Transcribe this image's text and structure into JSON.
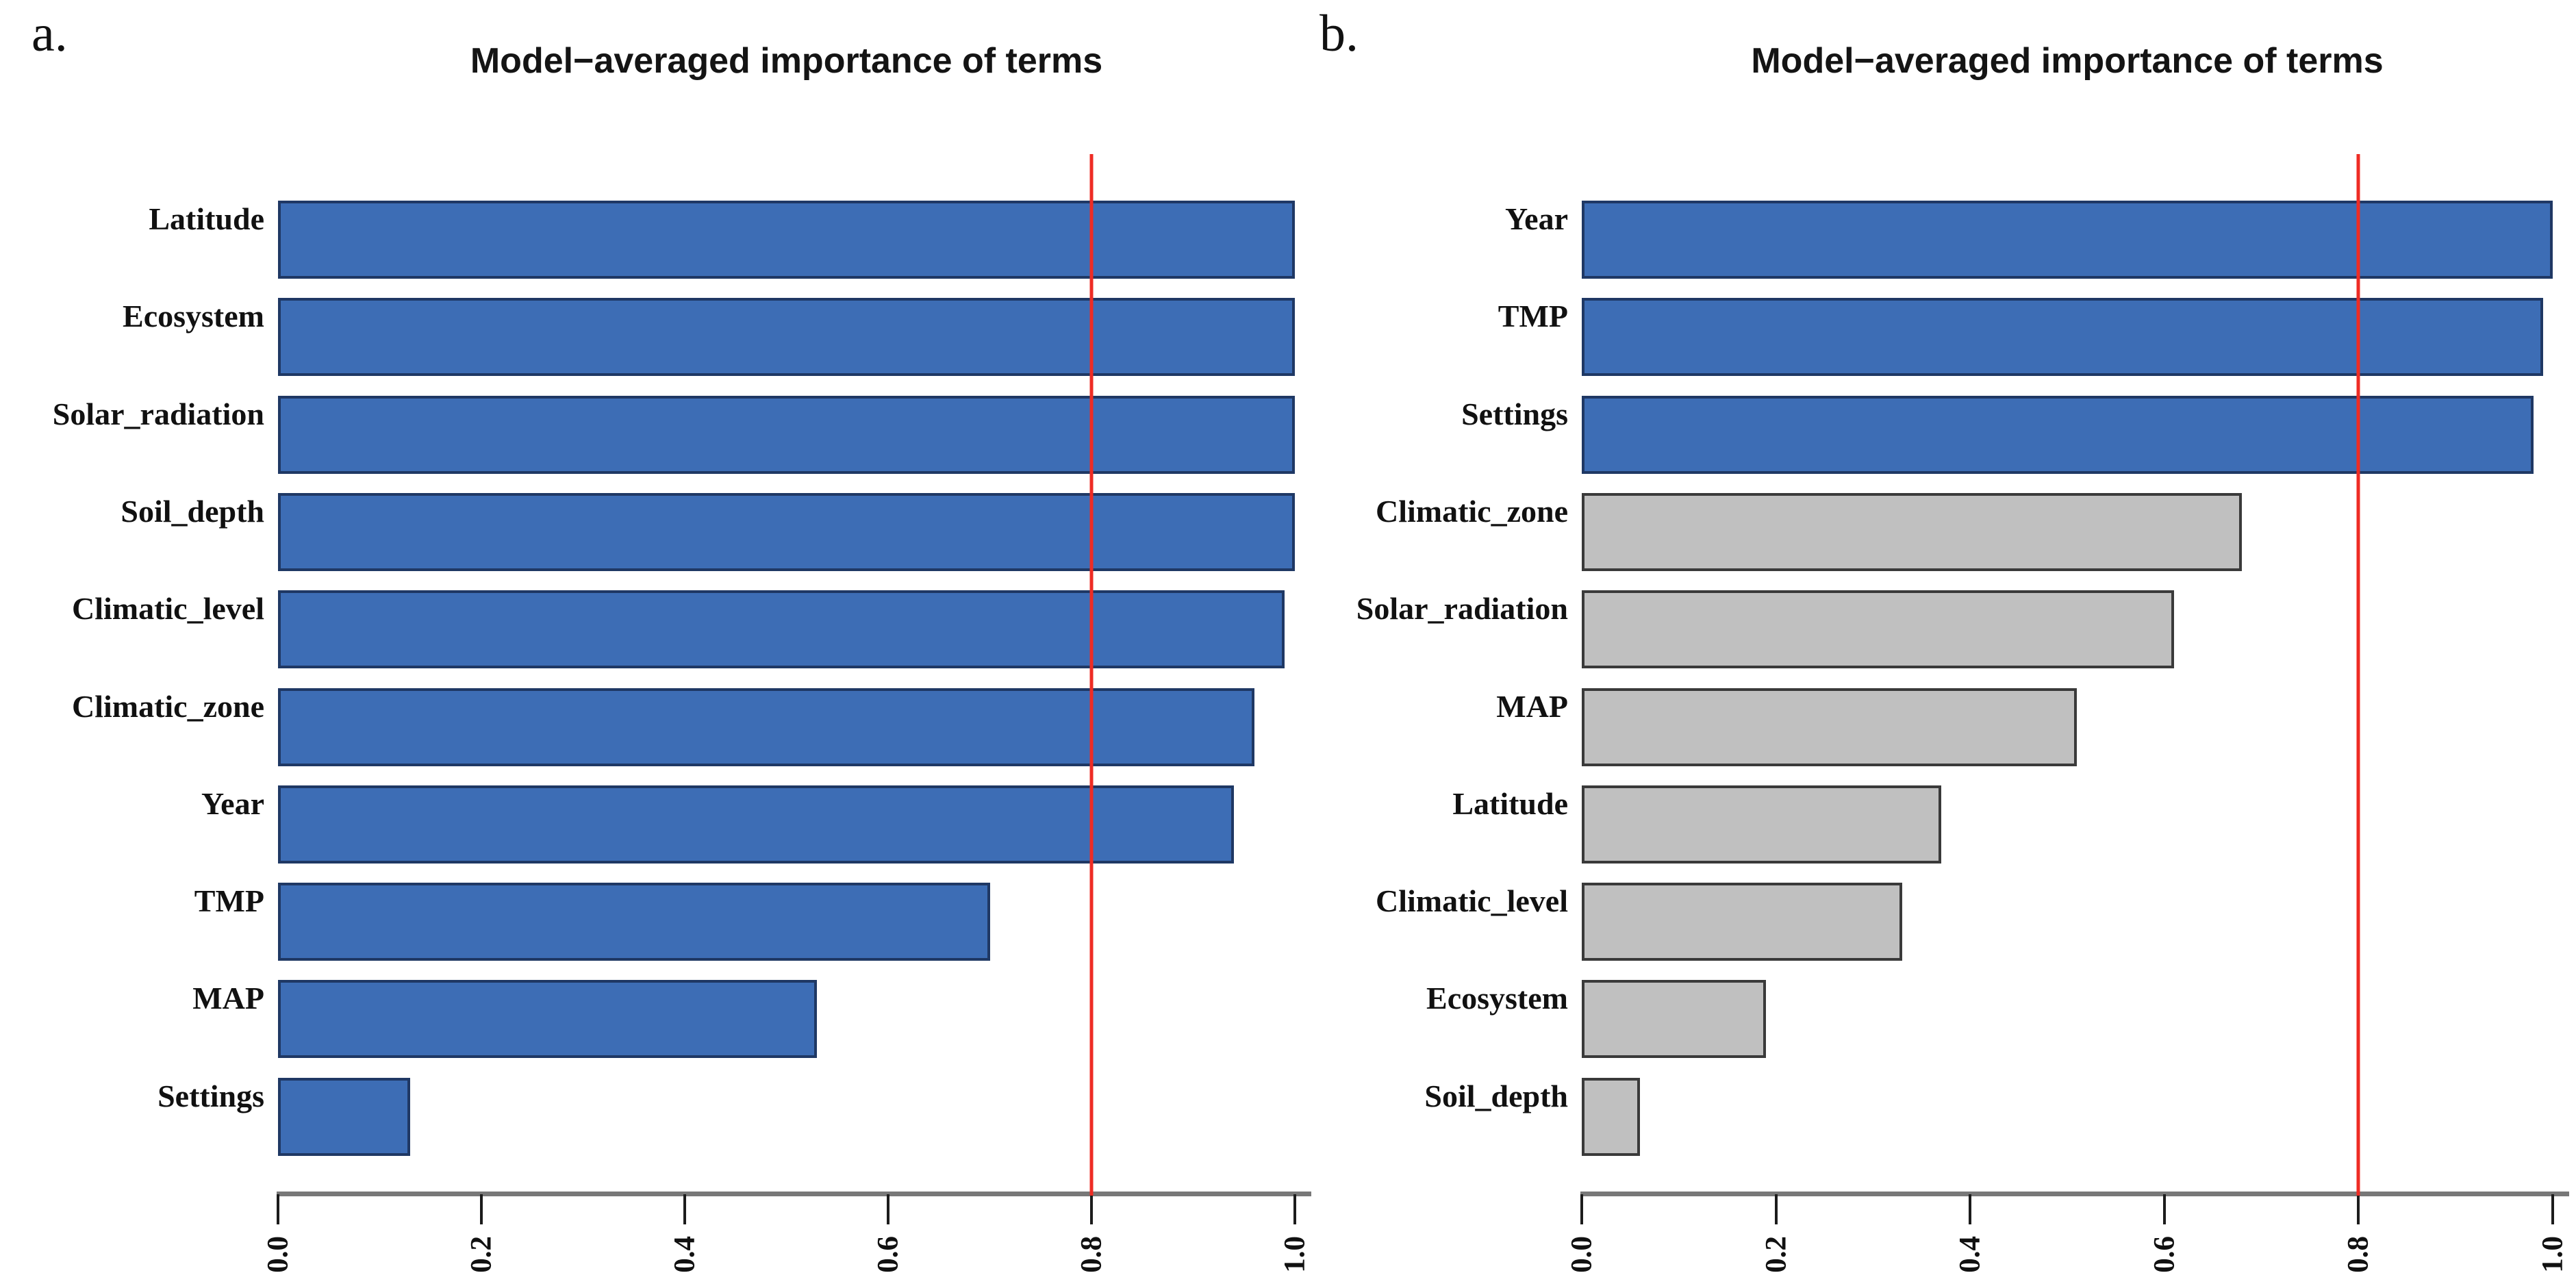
{
  "colors": {
    "blue": "#3D6DB5",
    "blue_border": "#1F3864",
    "gray": "#C0C0C0",
    "gray_border": "#3A3A3A",
    "red": "#EE2C24"
  },
  "chart_data": [
    {
      "type": "bar",
      "orientation": "horizontal",
      "panel_letter": "a.",
      "title": "Model−averaged importance of terms",
      "xlabel": "",
      "ylabel": "",
      "xlim": [
        0,
        1
      ],
      "x_ticks": [
        "0.0",
        "0.2",
        "0.4",
        "0.6",
        "0.8",
        "1.0"
      ],
      "threshold_line_x": 0.8,
      "grid": false,
      "legend": "none",
      "categories": [
        "Latitude",
        "Ecosystem",
        "Solar_radiation",
        "Soil_depth",
        "Climatic_level",
        "Climatic_zone",
        "Year",
        "TMP",
        "MAP",
        "Settings"
      ],
      "values": [
        1.0,
        1.0,
        1.0,
        1.0,
        0.99,
        0.96,
        0.94,
        0.7,
        0.53,
        0.13
      ],
      "bar_colors": [
        "blue",
        "blue",
        "blue",
        "blue",
        "blue",
        "blue",
        "blue",
        "blue",
        "blue",
        "blue"
      ]
    },
    {
      "type": "bar",
      "orientation": "horizontal",
      "panel_letter": "b.",
      "title": "Model−averaged importance of terms",
      "xlabel": "",
      "ylabel": "",
      "xlim": [
        0,
        1
      ],
      "x_ticks": [
        "0.0",
        "0.2",
        "0.4",
        "0.6",
        "0.8",
        "1.0"
      ],
      "threshold_line_x": 0.8,
      "grid": false,
      "legend": "none",
      "categories": [
        "Year",
        "TMP",
        "Settings",
        "Climatic_zone",
        "Solar_radiation",
        "MAP",
        "Latitude",
        "Climatic_level",
        "Ecosystem",
        "Soil_depth"
      ],
      "values": [
        1.0,
        0.99,
        0.98,
        0.68,
        0.61,
        0.51,
        0.37,
        0.33,
        0.19,
        0.06
      ],
      "bar_colors": [
        "blue",
        "blue",
        "blue",
        "gray",
        "gray",
        "gray",
        "gray",
        "gray",
        "gray",
        "gray"
      ]
    }
  ]
}
